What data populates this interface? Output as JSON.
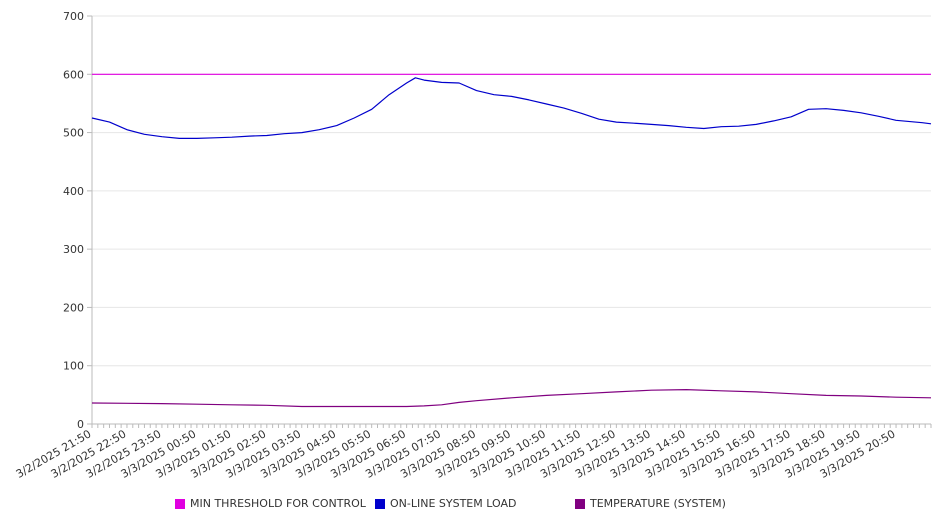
{
  "chart_data": {
    "type": "line",
    "title": "",
    "xlabel": "",
    "ylabel": "",
    "ylim": [
      0,
      700
    ],
    "yticks": [
      0,
      100,
      200,
      300,
      400,
      500,
      600,
      700
    ],
    "grid": true,
    "legend_position": "bottom",
    "x_start": "3/2/2025 21:50",
    "x_end": "3/3/2025 21:50",
    "x_tick_labels": [
      "3/2/2025 21:50",
      "3/2/2025 22:50",
      "3/2/2025 23:50",
      "3/3/2025 00:50",
      "3/3/2025 01:50",
      "3/3/2025 02:50",
      "3/3/2025 03:50",
      "3/3/2025 04:50",
      "3/3/2025 05:50",
      "3/3/2025 06:50",
      "3/3/2025 07:50",
      "3/3/2025 08:50",
      "3/3/2025 09:50",
      "3/3/2025 10:50",
      "3/3/2025 11:50",
      "3/3/2025 12:50",
      "3/3/2025 13:50",
      "3/3/2025 14:50",
      "3/3/2025 15:50",
      "3/3/2025 16:50",
      "3/3/2025 17:50",
      "3/3/2025 18:50",
      "3/3/2025 19:50",
      "3/3/2025 20:50"
    ],
    "series": [
      {
        "name": "MIN THRESHOLD FOR CONTROL",
        "color": "#e000e0",
        "points": [
          [
            "3/2/2025 21:50",
            600
          ],
          [
            "3/3/2025 21:50",
            600
          ]
        ]
      },
      {
        "name": "ON-LINE SYSTEM LOAD",
        "color": "#0000cc",
        "points": [
          [
            "3/2/2025 21:50",
            525
          ],
          [
            "3/2/2025 22:20",
            518
          ],
          [
            "3/2/2025 22:50",
            505
          ],
          [
            "3/2/2025 23:20",
            497
          ],
          [
            "3/2/2025 23:50",
            493
          ],
          [
            "3/3/2025 00:20",
            490
          ],
          [
            "3/3/2025 00:50",
            490
          ],
          [
            "3/3/2025 01:20",
            491
          ],
          [
            "3/3/2025 01:50",
            492
          ],
          [
            "3/3/2025 02:20",
            494
          ],
          [
            "3/3/2025 02:50",
            495
          ],
          [
            "3/3/2025 03:20",
            498
          ],
          [
            "3/3/2025 03:50",
            500
          ],
          [
            "3/3/2025 04:20",
            505
          ],
          [
            "3/3/2025 04:50",
            512
          ],
          [
            "3/3/2025 05:20",
            525
          ],
          [
            "3/3/2025 05:50",
            540
          ],
          [
            "3/3/2025 06:20",
            565
          ],
          [
            "3/3/2025 06:50",
            585
          ],
          [
            "3/3/2025 07:05",
            594
          ],
          [
            "3/3/2025 07:20",
            590
          ],
          [
            "3/3/2025 07:50",
            586
          ],
          [
            "3/3/2025 08:20",
            585
          ],
          [
            "3/3/2025 08:50",
            572
          ],
          [
            "3/3/2025 09:20",
            565
          ],
          [
            "3/3/2025 09:50",
            562
          ],
          [
            "3/3/2025 10:20",
            556
          ],
          [
            "3/3/2025 10:50",
            549
          ],
          [
            "3/3/2025 11:20",
            542
          ],
          [
            "3/3/2025 11:50",
            533
          ],
          [
            "3/3/2025 12:20",
            523
          ],
          [
            "3/3/2025 12:50",
            518
          ],
          [
            "3/3/2025 13:20",
            516
          ],
          [
            "3/3/2025 13:50",
            514
          ],
          [
            "3/3/2025 14:20",
            512
          ],
          [
            "3/3/2025 14:50",
            509
          ],
          [
            "3/3/2025 15:20",
            507
          ],
          [
            "3/3/2025 15:50",
            510
          ],
          [
            "3/3/2025 16:20",
            511
          ],
          [
            "3/3/2025 16:50",
            514
          ],
          [
            "3/3/2025 17:20",
            520
          ],
          [
            "3/3/2025 17:50",
            527
          ],
          [
            "3/3/2025 18:20",
            540
          ],
          [
            "3/3/2025 18:50",
            541
          ],
          [
            "3/3/2025 19:20",
            538
          ],
          [
            "3/3/2025 19:50",
            534
          ],
          [
            "3/3/2025 20:20",
            528
          ],
          [
            "3/3/2025 20:50",
            521
          ],
          [
            "3/3/2025 21:35",
            517
          ],
          [
            "3/3/2025 21:50",
            515
          ]
        ]
      },
      {
        "name": "TEMPERATURE (SYSTEM)",
        "color": "#800080",
        "points": [
          [
            "3/2/2025 21:50",
            36
          ],
          [
            "3/2/2025 23:50",
            35
          ],
          [
            "3/3/2025 00:50",
            34
          ],
          [
            "3/3/2025 01:50",
            33
          ],
          [
            "3/3/2025 02:50",
            32
          ],
          [
            "3/3/2025 03:50",
            30
          ],
          [
            "3/3/2025 04:50",
            30
          ],
          [
            "3/3/2025 05:50",
            30
          ],
          [
            "3/3/2025 06:50",
            30
          ],
          [
            "3/3/2025 07:20",
            31
          ],
          [
            "3/3/2025 07:50",
            33
          ],
          [
            "3/3/2025 08:20",
            37
          ],
          [
            "3/3/2025 08:50",
            40
          ],
          [
            "3/3/2025 09:50",
            45
          ],
          [
            "3/3/2025 10:50",
            49
          ],
          [
            "3/3/2025 11:50",
            52
          ],
          [
            "3/3/2025 12:50",
            55
          ],
          [
            "3/3/2025 13:50",
            58
          ],
          [
            "3/3/2025 14:50",
            59
          ],
          [
            "3/3/2025 15:50",
            57
          ],
          [
            "3/3/2025 16:50",
            55
          ],
          [
            "3/3/2025 17:50",
            52
          ],
          [
            "3/3/2025 18:50",
            49
          ],
          [
            "3/3/2025 19:50",
            48
          ],
          [
            "3/3/2025 20:50",
            46
          ],
          [
            "3/3/2025 21:50",
            45
          ]
        ]
      }
    ]
  },
  "legend": {
    "items": [
      {
        "label": "MIN THRESHOLD FOR CONTROL",
        "color": "#e000e0"
      },
      {
        "label": "ON-LINE SYSTEM LOAD",
        "color": "#0000cc"
      },
      {
        "label": "TEMPERATURE (SYSTEM)",
        "color": "#800080"
      }
    ]
  }
}
